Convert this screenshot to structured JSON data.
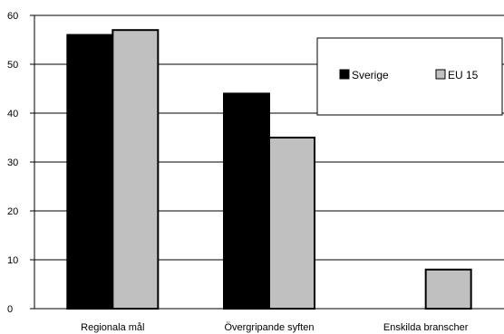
{
  "chart_data": {
    "type": "bar",
    "categories": [
      "Regionala mål",
      "Övergripande syften",
      "Enskilda branscher"
    ],
    "series": [
      {
        "name": "Sverige",
        "values": [
          56,
          44,
          0
        ],
        "color": "#000000"
      },
      {
        "name": "EU 15",
        "values": [
          57,
          35,
          8
        ],
        "color": "#c0c0c0"
      }
    ],
    "ylim": [
      0,
      60
    ],
    "yticks": [
      0,
      10,
      20,
      30,
      40,
      50,
      60
    ],
    "grid": true,
    "legend_position": "top-right",
    "title": "",
    "xlabel": "",
    "ylabel": ""
  }
}
